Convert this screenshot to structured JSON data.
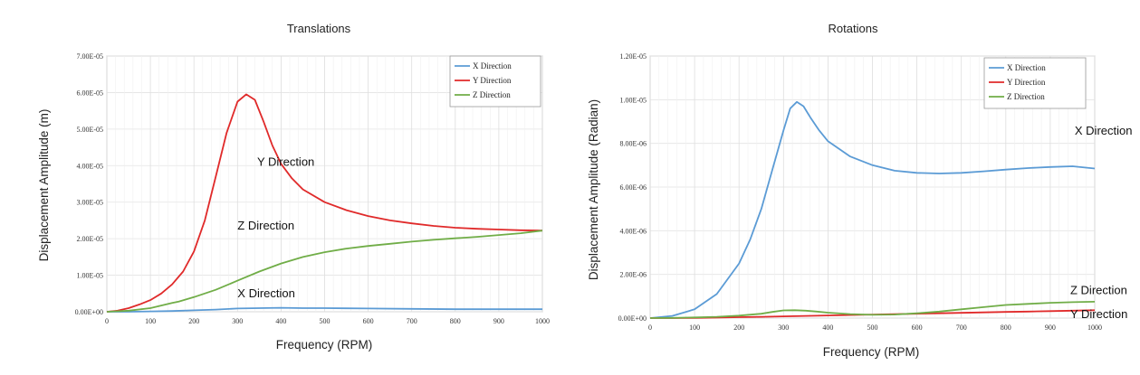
{
  "chart_data": [
    {
      "type": "line",
      "title": "Translations",
      "xlabel": "Frequency (RPM)",
      "ylabel": "Displacement  Amplitude  (m)",
      "xlim": [
        0,
        1000
      ],
      "ylim": [
        0,
        7e-05
      ],
      "xticks": [
        "0",
        "100",
        "200",
        "300",
        "400",
        "500",
        "600",
        "700",
        "800",
        "900",
        "1000"
      ],
      "yticks": [
        "0.00E+00",
        "1.00E-05",
        "2.00E-05",
        "3.00E-05",
        "4.00E-05",
        "5.00E-05",
        "6.00E-05",
        "7.00E-05"
      ],
      "grid": true,
      "legend_position": "top-right",
      "legend": [
        "X Direction",
        "Y Direction",
        "Z Direction"
      ],
      "annotations": [
        {
          "text": "Y Direction",
          "x": 345,
          "y": 4e-05
        },
        {
          "text": "Z Direction",
          "x": 300,
          "y": 2.25e-05
        },
        {
          "text": "X Direction",
          "x": 300,
          "y": 4e-06
        }
      ],
      "series": [
        {
          "name": "X Direction",
          "color": "#5b9bd5",
          "x": [
            0,
            50,
            100,
            150,
            200,
            250,
            300,
            350,
            400,
            450,
            500,
            600,
            700,
            800,
            900,
            1000
          ],
          "y": [
            0,
            0,
            1e-07,
            2e-07,
            4e-07,
            6e-07,
            9e-07,
            1e-06,
            1.1e-06,
            1e-06,
            1e-06,
            9e-07,
            8e-07,
            7e-07,
            7e-07,
            7e-07
          ]
        },
        {
          "name": "Y Direction",
          "color": "#e02a2a",
          "x": [
            0,
            25,
            50,
            75,
            100,
            125,
            150,
            175,
            200,
            225,
            250,
            275,
            300,
            320,
            340,
            360,
            380,
            400,
            425,
            450,
            500,
            550,
            600,
            650,
            700,
            750,
            800,
            850,
            900,
            950,
            1000
          ],
          "y": [
            0,
            3e-07,
            1e-06,
            2e-06,
            3.2e-06,
            5e-06,
            7.5e-06,
            1.1e-05,
            1.65e-05,
            2.5e-05,
            3.7e-05,
            4.9e-05,
            5.75e-05,
            5.95e-05,
            5.8e-05,
            5.2e-05,
            4.55e-05,
            4.05e-05,
            3.65e-05,
            3.35e-05,
            3e-05,
            2.78e-05,
            2.62e-05,
            2.5e-05,
            2.42e-05,
            2.35e-05,
            2.3e-05,
            2.27e-05,
            2.25e-05,
            2.23e-05,
            2.22e-05
          ]
        },
        {
          "name": "Z Direction",
          "color": "#70ad47",
          "x": [
            0,
            50,
            100,
            150,
            165,
            200,
            250,
            300,
            350,
            400,
            450,
            500,
            550,
            600,
            650,
            700,
            750,
            800,
            850,
            900,
            950,
            1000
          ],
          "y": [
            0,
            3e-07,
            1e-06,
            2.4e-06,
            2.8e-06,
            4e-06,
            6e-06,
            8.5e-06,
            1.1e-05,
            1.32e-05,
            1.5e-05,
            1.63e-05,
            1.73e-05,
            1.8e-05,
            1.86e-05,
            1.92e-05,
            1.97e-05,
            2.01e-05,
            2.05e-05,
            2.1e-05,
            2.15e-05,
            2.22e-05
          ]
        }
      ]
    },
    {
      "type": "line",
      "title": "Rotations",
      "xlabel": "Frequency (RPM)",
      "ylabel": "Displacement  Amplitude  (Radian)",
      "xlim": [
        0,
        1000
      ],
      "ylim": [
        0,
        1.2e-05
      ],
      "xticks": [
        "0",
        "100",
        "200",
        "300",
        "400",
        "500",
        "600",
        "700",
        "800",
        "900",
        "1000"
      ],
      "yticks": [
        "0.00E+00",
        "2.00E-06",
        "4.00E-06",
        "6.00E-06",
        "8.00E-06",
        "1.00E-05",
        "1.20E-05"
      ],
      "grid": true,
      "legend_position": "top-right",
      "legend": [
        "X Direction",
        "Y Direction",
        "Z Direction"
      ],
      "annotations": [
        {
          "text": "X Direction",
          "x": 955,
          "y": 8.4e-06
        },
        {
          "text": "Z Direction",
          "x": 945,
          "y": 1.1e-06
        },
        {
          "text": "Y Direction",
          "x": 945,
          "y": 0
        }
      ],
      "series": [
        {
          "name": "X Direction",
          "color": "#5b9bd5",
          "x": [
            0,
            50,
            100,
            150,
            200,
            225,
            250,
            275,
            300,
            315,
            330,
            345,
            360,
            380,
            400,
            450,
            500,
            550,
            600,
            650,
            700,
            750,
            800,
            850,
            900,
            950,
            1000
          ],
          "y": [
            0,
            1e-07,
            4e-07,
            1.1e-06,
            2.5e-06,
            3.6e-06,
            5e-06,
            6.8e-06,
            8.6e-06,
            9.6e-06,
            9.9e-06,
            9.7e-06,
            9.2e-06,
            8.6e-06,
            8.1e-06,
            7.4e-06,
            7e-06,
            6.75e-06,
            6.65e-06,
            6.62e-06,
            6.65e-06,
            6.72e-06,
            6.8e-06,
            6.87e-06,
            6.92e-06,
            6.95e-06,
            6.85e-06
          ]
        },
        {
          "name": "Y Direction",
          "color": "#e02a2a",
          "x": [
            0,
            50,
            100,
            150,
            200,
            250,
            300,
            350,
            400,
            450,
            500,
            550,
            600,
            650,
            700,
            750,
            800,
            850,
            900,
            950,
            1000
          ],
          "y": [
            0,
            0,
            1e-08,
            2e-08,
            4e-08,
            6e-08,
            8e-08,
            1e-07,
            1.2e-07,
            1.4e-07,
            1.6e-07,
            1.8e-07,
            2e-07,
            2.2e-07,
            2.4e-07,
            2.6e-07,
            2.8e-07,
            3e-07,
            3.2e-07,
            3.4e-07,
            3.6e-07
          ]
        },
        {
          "name": "Z Direction",
          "color": "#70ad47",
          "x": [
            0,
            50,
            100,
            150,
            200,
            250,
            275,
            300,
            325,
            350,
            375,
            400,
            450,
            500,
            550,
            600,
            650,
            700,
            750,
            800,
            850,
            900,
            950,
            1000
          ],
          "y": [
            0,
            1e-08,
            3e-08,
            6e-08,
            1.1e-07,
            2e-07,
            2.8e-07,
            3.5e-07,
            3.6e-07,
            3.4e-07,
            3e-07,
            2.5e-07,
            1.8e-07,
            1.5e-07,
            1.6e-07,
            2.2e-07,
            3e-07,
            4e-07,
            5e-07,
            6e-07,
            6.5e-07,
            7e-07,
            7.3e-07,
            7.5e-07
          ]
        }
      ]
    }
  ]
}
